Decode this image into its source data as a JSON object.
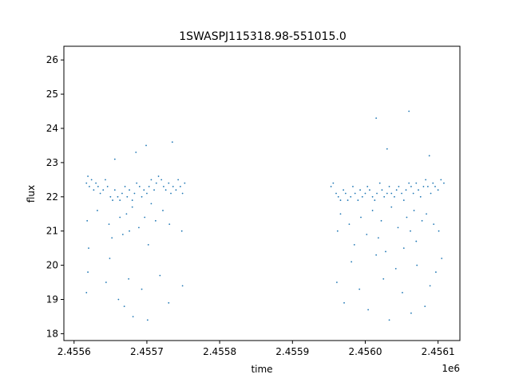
{
  "chart_data": {
    "type": "scatter",
    "title": "1SWASPJ115318.98-551015.0",
    "xlabel": "time",
    "ylabel": "flux",
    "x_offset_label": "1e6",
    "xlim": [
      2455586,
      2456130
    ],
    "ylim": [
      17.8,
      26.4
    ],
    "x_ticks": [
      2455600,
      2455700,
      2455800,
      2455900,
      2456000,
      2456100
    ],
    "x_tick_labels": [
      "2.4556",
      "2.4557",
      "2.4558",
      "2.4559",
      "2.4560",
      "2.4561"
    ],
    "y_ticks": [
      18,
      19,
      20,
      21,
      22,
      23,
      24,
      25,
      26
    ],
    "y_tick_labels": [
      "18",
      "19",
      "20",
      "21",
      "22",
      "23",
      "24",
      "25",
      "26"
    ],
    "grid": false,
    "series": [
      {
        "color": "#1f77b4",
        "x": [
          2455617,
          2455619,
          2455621,
          2455624,
          2455627,
          2455630,
          2455633,
          2455636,
          2455640,
          2455643,
          2455646,
          2455650,
          2455653,
          2455656,
          2455660,
          2455663,
          2455666,
          2455670,
          2455673,
          2455676,
          2455680,
          2455683,
          2455686,
          2455690,
          2455693,
          2455696,
          2455700,
          2455703,
          2455706,
          2455710,
          2455713,
          2455716,
          2455720,
          2455723,
          2455726,
          2455730,
          2455733,
          2455736,
          2455740,
          2455743,
          2455746,
          2455749,
          2455752,
          2455618,
          2455620,
          2455632,
          2455648,
          2455652,
          2455663,
          2455667,
          2455672,
          2455676,
          2455680,
          2455689,
          2455697,
          2455702,
          2455706,
          2455712,
          2455722,
          2455731,
          2455748,
          2455617,
          2455619,
          2455644,
          2455649,
          2455661,
          2455669,
          2455675,
          2455681,
          2455693,
          2455701,
          2455718,
          2455730,
          2455749,
          2455656,
          2455685,
          2455699,
          2455735,
          2455953,
          2455956,
          2455960,
          2455963,
          2455966,
          2455970,
          2455973,
          2455976,
          2455980,
          2455983,
          2455986,
          2455990,
          2455993,
          2455996,
          2456000,
          2456003,
          2456006,
          2456010,
          2456013,
          2456016,
          2456020,
          2456023,
          2456026,
          2456030,
          2456033,
          2456036,
          2456040,
          2456043,
          2456046,
          2456050,
          2456053,
          2456056,
          2456060,
          2456063,
          2456066,
          2456070,
          2456073,
          2456076,
          2456080,
          2456083,
          2456086,
          2456090,
          2456093,
          2456096,
          2456100,
          2456104,
          2456108,
          2455962,
          2455966,
          2455978,
          2455985,
          2455994,
          2456002,
          2456010,
          2456018,
          2456022,
          2456028,
          2456036,
          2456045,
          2456053,
          2456057,
          2456062,
          2456067,
          2456070,
          2456078,
          2456084,
          2456094,
          2456101,
          2455961,
          2455971,
          2455981,
          2455992,
          2456004,
          2456015,
          2456025,
          2456033,
          2456042,
          2456051,
          2456063,
          2456071,
          2456082,
          2456089,
          2456097,
          2456105,
          2456015,
          2456060,
          2456030,
          2456088
        ],
        "y": [
          22.4,
          22.6,
          22.3,
          22.5,
          22.2,
          22.4,
          22.3,
          22.1,
          22.2,
          22.5,
          22.3,
          22.0,
          21.9,
          22.2,
          22.0,
          21.9,
          22.1,
          22.3,
          22.0,
          22.2,
          21.9,
          22.1,
          22.4,
          22.3,
          22.0,
          22.2,
          22.1,
          22.3,
          22.5,
          22.2,
          22.4,
          22.6,
          22.5,
          22.3,
          22.2,
          22.4,
          22.1,
          22.3,
          22.2,
          22.5,
          22.3,
          22.1,
          22.4,
          21.3,
          20.5,
          21.6,
          21.2,
          20.8,
          21.4,
          20.9,
          21.5,
          21.0,
          21.7,
          21.1,
          21.4,
          20.6,
          21.8,
          21.3,
          21.6,
          21.2,
          21.0,
          19.2,
          19.8,
          19.5,
          20.2,
          19.0,
          18.8,
          19.6,
          18.5,
          19.3,
          18.4,
          19.7,
          18.9,
          19.4,
          23.1,
          23.3,
          23.5,
          23.6,
          22.3,
          22.4,
          22.1,
          22.0,
          21.9,
          22.2,
          22.1,
          21.9,
          22.0,
          22.3,
          22.1,
          21.9,
          22.2,
          22.0,
          22.1,
          22.3,
          22.2,
          22.0,
          21.9,
          22.1,
          22.4,
          22.2,
          22.0,
          22.1,
          22.3,
          22.1,
          22.0,
          22.2,
          22.3,
          22.1,
          21.9,
          22.2,
          22.4,
          22.3,
          22.1,
          22.4,
          22.2,
          22.0,
          22.3,
          22.5,
          22.3,
          22.1,
          22.4,
          22.3,
          22.2,
          22.5,
          22.4,
          21.0,
          21.5,
          21.2,
          20.6,
          21.4,
          20.9,
          21.6,
          20.8,
          21.3,
          20.4,
          21.7,
          21.1,
          20.5,
          21.4,
          21.0,
          21.6,
          20.7,
          21.3,
          21.5,
          21.2,
          21.0,
          19.5,
          18.9,
          20.1,
          19.3,
          18.7,
          20.3,
          19.6,
          18.4,
          19.9,
          19.2,
          18.6,
          20.0,
          18.8,
          19.4,
          19.8,
          20.2,
          24.3,
          24.5,
          23.4,
          23.2
        ]
      }
    ]
  }
}
